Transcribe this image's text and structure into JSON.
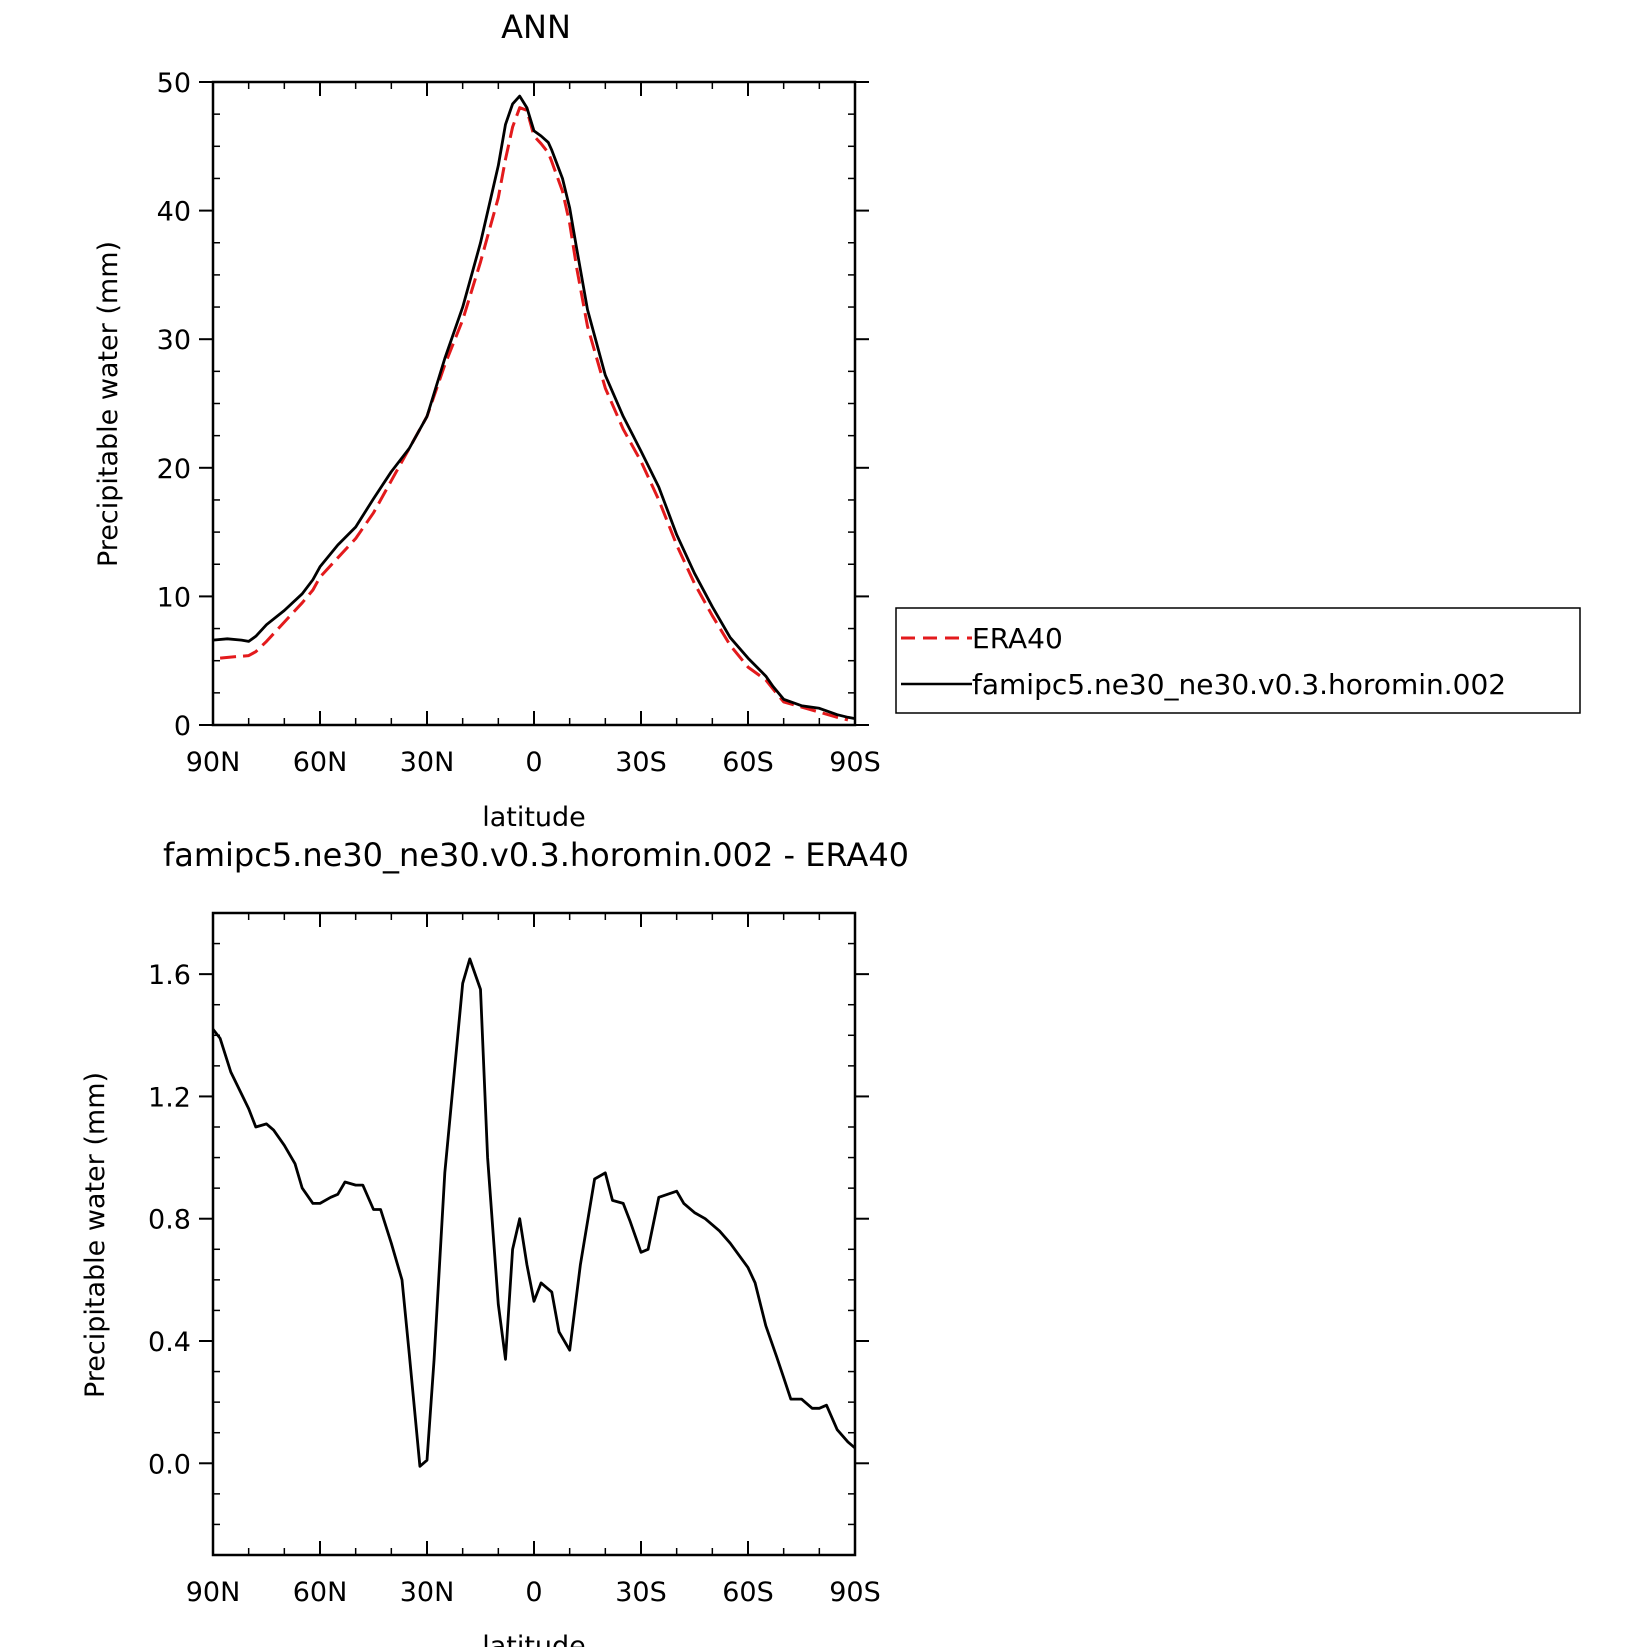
{
  "chart_data": [
    {
      "type": "line",
      "title": "ANN",
      "xlabel": "latitude",
      "ylabel": "Precipitable water (mm)",
      "xlim": [
        90,
        -90
      ],
      "ylim": [
        0,
        50
      ],
      "x_ticks": [
        90,
        60,
        30,
        0,
        -30,
        -60,
        -90
      ],
      "x_tick_labels": [
        "90N",
        "60N",
        "30N",
        "0",
        "30S",
        "60S",
        "90S"
      ],
      "y_ticks": [
        0,
        10,
        20,
        30,
        40,
        50
      ],
      "y_tick_labels": [
        "0",
        "10",
        "20",
        "30",
        "40",
        "50"
      ],
      "grid": false,
      "legend": {
        "placement": "right",
        "entries": [
          {
            "label": "ERA40",
            "color": "#e31a1c",
            "style": "dashed"
          },
          {
            "label": "famipc5.ne30_ne30.v0.3.horomin.002",
            "color": "#000000",
            "style": "solid"
          }
        ]
      },
      "series": [
        {
          "name": "ERA40",
          "color": "#e31a1c",
          "style": "dashed",
          "x": [
            88,
            84,
            80,
            78,
            75,
            70,
            65,
            62,
            60,
            55,
            50,
            45,
            40,
            35,
            30,
            25,
            20,
            15,
            10,
            8,
            6,
            4,
            2,
            0,
            -2,
            -4,
            -5,
            -8,
            -10,
            -12,
            -15,
            -20,
            -25,
            -30,
            -35,
            -40,
            -45,
            -50,
            -55,
            -60,
            -65,
            -67,
            -70,
            -75,
            -80,
            -85,
            -88
          ],
          "values": [
            5.2,
            5.3,
            5.4,
            5.7,
            6.5,
            8,
            9.5,
            10.5,
            11.5,
            13,
            14.5,
            16.5,
            19,
            21.5,
            24,
            28,
            31.5,
            36,
            41,
            44,
            46.5,
            48,
            47.8,
            45.8,
            45.2,
            44.5,
            43.8,
            41.5,
            39,
            35.5,
            31,
            26.2,
            23,
            20.5,
            17.5,
            14,
            11,
            8.5,
            6.2,
            4.5,
            3.5,
            2.8,
            1.8,
            1.4,
            1.0,
            0.6,
            0.4
          ]
        },
        {
          "name": "famipc5.ne30_ne30.v0.3.horomin.002",
          "color": "#000000",
          "style": "solid",
          "x": [
            90,
            86,
            82,
            80,
            78,
            75,
            70,
            65,
            62,
            60,
            55,
            50,
            45,
            40,
            35,
            30,
            25,
            20,
            15,
            10,
            8,
            6,
            4,
            2,
            0,
            -2,
            -4,
            -5,
            -8,
            -10,
            -12,
            -15,
            -20,
            -25,
            -30,
            -35,
            -40,
            -45,
            -50,
            -55,
            -60,
            -65,
            -67,
            -70,
            -75,
            -80,
            -85,
            -88,
            -90
          ],
          "values": [
            6.6,
            6.7,
            6.6,
            6.5,
            6.9,
            7.8,
            8.9,
            10.2,
            11.3,
            12.3,
            14,
            15.4,
            17.6,
            19.7,
            21.5,
            24,
            28.5,
            32.5,
            37.5,
            43.5,
            46.7,
            48.3,
            48.9,
            48,
            46.2,
            45.8,
            45.3,
            44.7,
            42.5,
            40.2,
            37,
            32.3,
            27.2,
            24,
            21.3,
            18.5,
            14.8,
            11.8,
            9.2,
            6.8,
            5.2,
            3.8,
            3.0,
            2.0,
            1.5,
            1.3,
            0.8,
            0.6,
            0.5
          ]
        }
      ]
    },
    {
      "type": "line",
      "title": "famipc5.ne30_ne30.v0.3.horomin.002 - ERA40",
      "xlabel": "latitude",
      "ylabel": "Precipitable water (mm)",
      "xlim": [
        90,
        -90
      ],
      "ylim": [
        -0.3,
        1.8
      ],
      "x_ticks": [
        90,
        60,
        30,
        0,
        -30,
        -60,
        -90
      ],
      "x_tick_labels": [
        "90N",
        "60N",
        "30N",
        "0",
        "30S",
        "60S",
        "90S"
      ],
      "y_ticks": [
        0.0,
        0.4,
        0.8,
        1.2,
        1.6
      ],
      "y_tick_labels": [
        "0.0",
        "0.4",
        "0.8",
        "1.2",
        "1.6"
      ],
      "grid": false,
      "series": [
        {
          "color": "#000000",
          "style": "solid",
          "x": [
            90,
            88,
            85,
            80,
            78,
            75,
            73,
            70,
            67,
            65,
            62,
            60,
            57,
            55,
            53,
            50,
            48,
            45,
            43,
            40,
            37,
            35,
            32,
            30,
            28,
            25,
            22,
            20,
            18,
            15,
            13,
            10,
            8,
            6,
            4,
            2,
            0,
            -2,
            -5,
            -7,
            -10,
            -13,
            -17,
            -20,
            -22,
            -25,
            -27,
            -30,
            -32,
            -35,
            -40,
            -42,
            -45,
            -48,
            -52,
            -55,
            -60,
            -62,
            -65,
            -68,
            -70,
            -72,
            -75,
            -78,
            -80,
            -82,
            -85,
            -88,
            -90
          ],
          "values": [
            1.42,
            1.39,
            1.28,
            1.16,
            1.1,
            1.11,
            1.09,
            1.04,
            0.98,
            0.9,
            0.85,
            0.85,
            0.87,
            0.88,
            0.92,
            0.91,
            0.91,
            0.83,
            0.83,
            0.72,
            0.6,
            0.36,
            -0.01,
            0.01,
            0.34,
            0.95,
            1.32,
            1.57,
            1.65,
            1.55,
            1.0,
            0.52,
            0.34,
            0.7,
            0.8,
            0.65,
            0.53,
            0.59,
            0.56,
            0.43,
            0.37,
            0.65,
            0.93,
            0.95,
            0.86,
            0.85,
            0.79,
            0.69,
            0.7,
            0.87,
            0.89,
            0.85,
            0.82,
            0.8,
            0.76,
            0.72,
            0.64,
            0.59,
            0.45,
            0.35,
            0.28,
            0.21,
            0.21,
            0.18,
            0.18,
            0.19,
            0.11,
            0.07,
            0.05
          ]
        }
      ]
    }
  ]
}
